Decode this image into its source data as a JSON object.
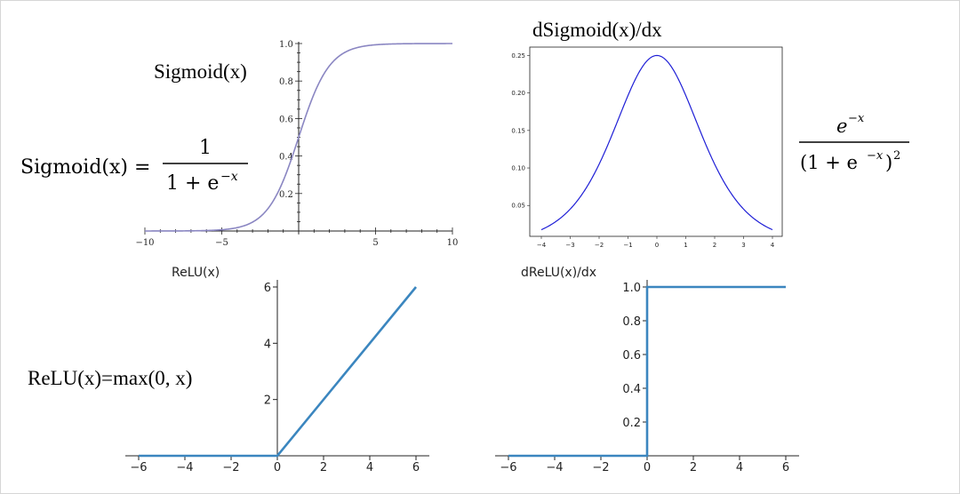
{
  "labels": {
    "sigmoid_label": "Sigmoid(x)",
    "dsigmoid_title": "dSigmoid(x)/dx",
    "relu_title": "ReLU(x)",
    "drelu_title": "dReLU(x)/dx",
    "relu_formula": "ReLU(x)=max(0, x)"
  },
  "equations": {
    "sigmoid_lhs": "Sigmoid(x) =",
    "sigmoid_num": "1",
    "sigmoid_den": "1 + e",
    "sigmoid_den_exp": "−x",
    "dsig_num": "e",
    "dsig_num_exp": "−x",
    "dsig_den": "(1 + e",
    "dsig_den_exp": "−x",
    "dsig_den_close": ")",
    "dsig_den_sq": "2"
  },
  "chart_data": [
    {
      "id": "sigmoid",
      "type": "line",
      "function": "sigmoid",
      "xlim": [
        -10,
        10
      ],
      "ylim": [
        0,
        1
      ],
      "xticks": [
        "−10",
        "−5",
        "5",
        "10"
      ],
      "yticks": [
        "0.2",
        "0.4",
        "0.6",
        "0.8",
        "1.0"
      ],
      "color": "#8a86c2"
    },
    {
      "id": "dsigmoid",
      "type": "line",
      "function": "sigmoid_derivative",
      "xlim": [
        -4,
        4
      ],
      "ylim": [
        0.01,
        0.26
      ],
      "xticks": [
        "−4",
        "−3",
        "−2",
        "−1",
        "0",
        "1",
        "2",
        "3",
        "4"
      ],
      "yticks": [
        "0.05",
        "0.10",
        "0.15",
        "0.20",
        "0.25"
      ],
      "color": "#1f1fd6"
    },
    {
      "id": "relu",
      "type": "line",
      "function": "relu",
      "xlim": [
        -6,
        6
      ],
      "ylim": [
        0,
        6
      ],
      "xticks": [
        "−6",
        "−4",
        "−2",
        "0",
        "2",
        "4",
        "6"
      ],
      "yticks": [
        "2",
        "4",
        "6"
      ],
      "color": "#3b86bf"
    },
    {
      "id": "drelu",
      "type": "line",
      "function": "relu_derivative",
      "xlim": [
        -6,
        6
      ],
      "ylim": [
        0,
        1
      ],
      "xticks": [
        "−6",
        "−4",
        "−2",
        "0",
        "2",
        "4",
        "6"
      ],
      "yticks": [
        "0.2",
        "0.4",
        "0.6",
        "0.8",
        "1.0"
      ],
      "color": "#3b86bf"
    }
  ]
}
